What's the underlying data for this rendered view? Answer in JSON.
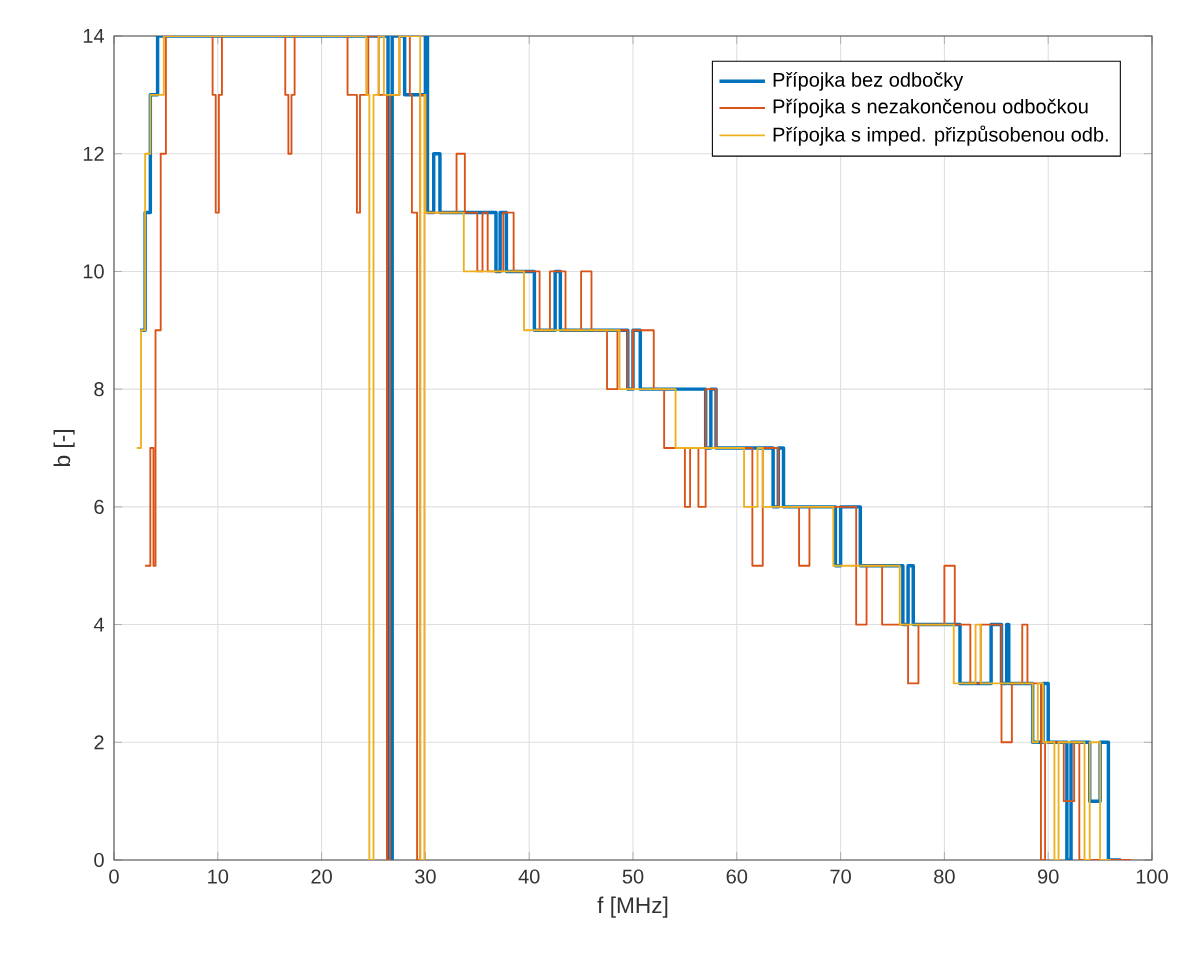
{
  "chart_data": {
    "type": "step",
    "xlabel": "f [MHz]",
    "ylabel": "b [-]",
    "xlim": [
      0,
      100
    ],
    "xticks": [
      0,
      10,
      20,
      30,
      40,
      50,
      60,
      70,
      80,
      90,
      100
    ],
    "ylim": [
      0,
      14
    ],
    "yticks": [
      0,
      2,
      4,
      6,
      8,
      10,
      12,
      14
    ],
    "grid": true,
    "legend": "top right",
    "marker": "none",
    "line_style": "solid",
    "series": [
      {
        "name": "Přípojka bez odbočky",
        "color": "#0072bd",
        "x": [
          2.5,
          3,
          3.5,
          4.2,
          26.4,
          26.8,
          28,
          30,
          30.2,
          30.8,
          31.4,
          36.8,
          37.2,
          37.8,
          40.5,
          42.5,
          43,
          49.5,
          50,
          50.7,
          57,
          57.5,
          58,
          63.5,
          64,
          64.5,
          69.5,
          70,
          71.9,
          76,
          76.5,
          77,
          81.5,
          84.5,
          85.5,
          86,
          86.2,
          88.5,
          89.5,
          90,
          91.8,
          92.2,
          94,
          95,
          95.8,
          97
        ],
        "values": [
          9,
          11,
          13,
          14,
          0,
          14,
          13,
          14,
          11,
          12,
          11,
          10,
          11,
          10,
          9,
          10,
          9,
          8,
          9,
          8,
          7,
          8,
          7,
          6,
          7,
          6,
          5,
          6,
          5,
          4,
          5,
          4,
          3,
          4,
          3,
          4,
          3,
          2,
          3,
          2,
          0,
          2,
          1,
          2,
          0,
          0
        ]
      },
      {
        "name": "Přípojka s nezakončenou odbočkou",
        "color": "#d95319",
        "x": [
          3,
          3.5,
          3.8,
          4,
          4.5,
          5,
          9.5,
          9.8,
          10.1,
          10.4,
          16.5,
          16.8,
          17.1,
          17.4,
          22.5,
          23.4,
          23.7,
          24.5,
          25.5,
          26.3,
          26.6,
          27.5,
          28.5,
          28.7,
          29.2,
          29.5,
          30,
          33,
          33.8,
          35,
          35.5,
          36,
          37.5,
          38.5,
          41,
          42,
          43.5,
          45,
          46,
          47.5,
          48.5,
          49.5,
          50,
          52,
          53,
          55,
          55.5,
          56.3,
          57,
          58,
          61.5,
          62.5,
          64,
          66,
          67,
          71.5,
          72.5,
          74,
          76.5,
          77.5,
          80,
          81,
          82.5,
          83.5,
          85.5,
          86.5,
          87.5,
          88,
          89.3,
          89.7,
          91.5,
          92.5,
          93,
          95,
          98
        ],
        "values": [
          5,
          7,
          5,
          9,
          12,
          14,
          13,
          11,
          13,
          14,
          13,
          12,
          13,
          14,
          13,
          11,
          13,
          14,
          13,
          0,
          13,
          14,
          13,
          11,
          0,
          13,
          11,
          12,
          11,
          10,
          11,
          10,
          11,
          10,
          9,
          10,
          9,
          10,
          9,
          8,
          9,
          8,
          9,
          8,
          7,
          6,
          7,
          6,
          8,
          7,
          5,
          7,
          6,
          5,
          6,
          4,
          5,
          4,
          3,
          4,
          5,
          4,
          3,
          4,
          2,
          3,
          4,
          3,
          0,
          2,
          1,
          2,
          0,
          0,
          0
        ]
      },
      {
        "name": "Přípojka s imped. přizpůsobenou odb.",
        "color": "#edb120",
        "x": [
          2.2,
          2.6,
          3,
          3.5,
          4.8,
          24.3,
          24.6,
          25,
          25.5,
          26,
          27.5,
          29.5,
          29.9,
          30,
          33.7,
          39.5,
          48.7,
          54.1,
          60.7,
          62,
          62.5,
          69.3,
          75.7,
          80.9,
          83,
          83.5,
          88.5,
          89,
          89.5,
          90.6,
          91,
          93.5,
          94,
          95,
          96
        ],
        "values": [
          7,
          9,
          12,
          13,
          14,
          13,
          0,
          13,
          14,
          13,
          14,
          0,
          13,
          11,
          10,
          9,
          8,
          7,
          6,
          7,
          6,
          5,
          4,
          3,
          4,
          3,
          2,
          3,
          2,
          0,
          2,
          0,
          2,
          0,
          0
        ]
      }
    ]
  }
}
